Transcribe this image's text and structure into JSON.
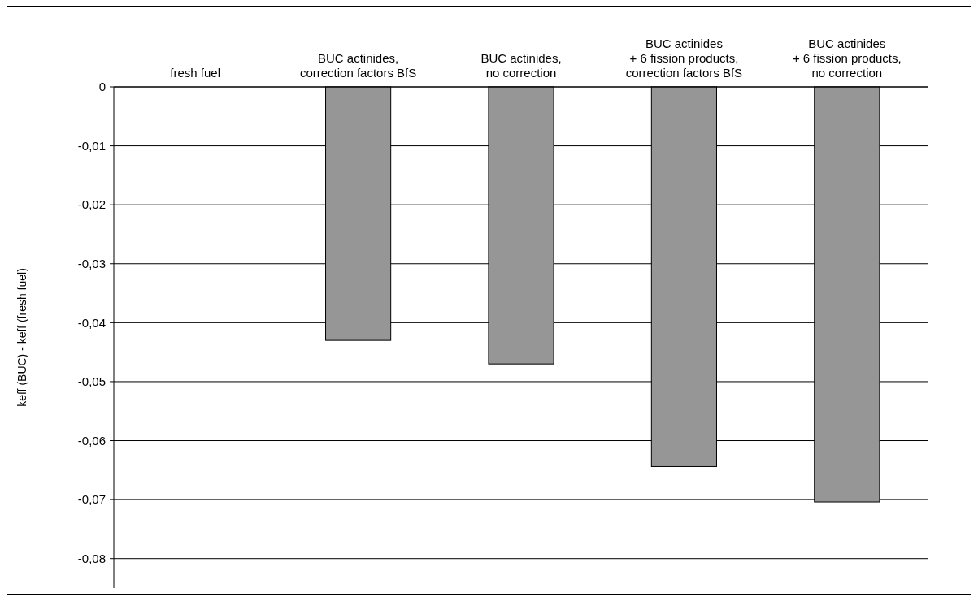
{
  "chart_data": {
    "type": "bar",
    "ylabel": "keff (BUC) - keff (fresh fuel)",
    "categories": [
      "fresh fuel",
      "BUC actinides,\ncorrection factors BfS",
      "BUC actinides,\nno correction",
      "BUC actinides\n+ 6 fission products,\ncorrection factors BfS",
      "BUC actinides\n+ 6 fission products,\nno correction"
    ],
    "values": [
      0,
      -0.043,
      -0.047,
      -0.0644,
      -0.0704
    ],
    "color": "#969696",
    "ylim": [
      -0.085,
      0
    ],
    "yticks": [
      0,
      {
        "value": -0.01,
        "label": "-0,01"
      },
      {
        "value": -0.02,
        "label": "-0,02"
      },
      {
        "value": -0.03,
        "label": "-0,03"
      },
      {
        "value": -0.04,
        "label": "-0,04"
      },
      {
        "value": -0.05,
        "label": "-0,05"
      },
      {
        "value": -0.06,
        "label": "-0,06"
      },
      {
        "value": -0.07,
        "label": "-0,07"
      },
      {
        "value": -0.08,
        "label": "-0,08"
      }
    ],
    "grid": "y"
  }
}
